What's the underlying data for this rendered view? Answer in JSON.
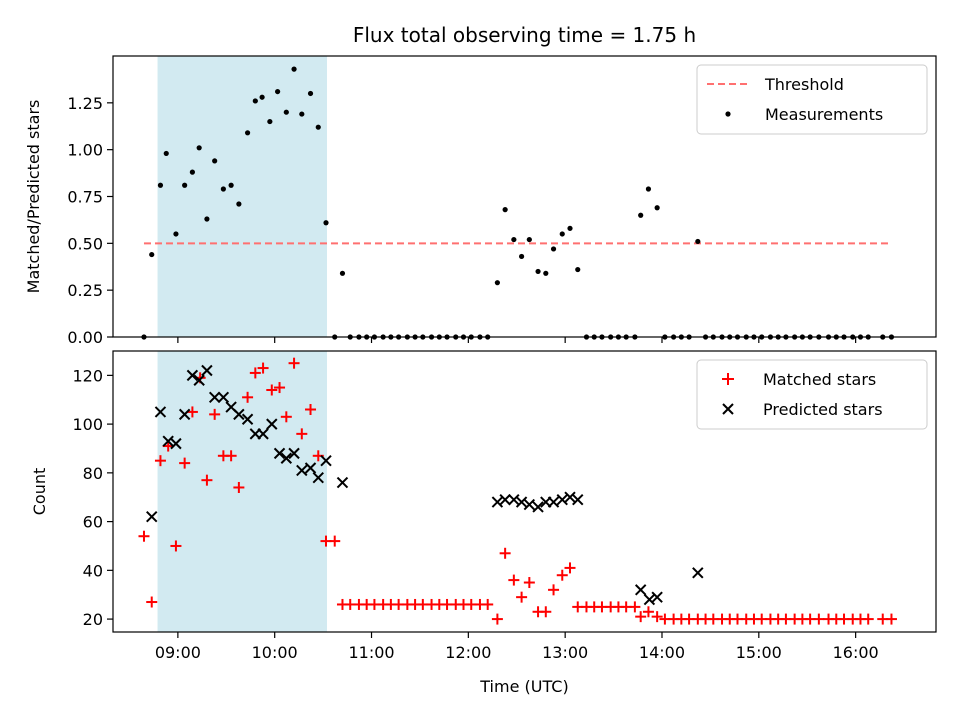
{
  "figure_title": "Flux total observing time = 1.75 h",
  "colors": {
    "highlight_band": "#add8e6",
    "threshold": "#ff7070",
    "measurement": "#000000",
    "matched": "#ff0000",
    "predicted": "#000000"
  },
  "chart_data": [
    {
      "type": "scatter",
      "panel": "top",
      "title": "Flux total observing time = 1.75 h",
      "xlabel": "",
      "ylabel": "Matched/Predicted stars",
      "xlim": [
        8.33,
        16.83
      ],
      "ylim": [
        0.0,
        1.5
      ],
      "yticks": [
        0.0,
        0.25,
        0.5,
        0.75,
        1.0,
        1.25
      ],
      "ytick_labels": [
        "0.00",
        "0.25",
        "0.50",
        "0.75",
        "1.00",
        "1.25"
      ],
      "xticks": [
        9,
        10,
        11,
        12,
        13,
        14,
        15,
        16
      ],
      "highlight_span": [
        8.79,
        10.54
      ],
      "legend": {
        "location": "upper right",
        "entries": [
          "Threshold",
          "Measurements"
        ]
      },
      "threshold": {
        "name": "Threshold",
        "y": 0.5,
        "x_range": [
          8.65,
          16.35
        ],
        "style": "dashed"
      },
      "series": [
        {
          "name": "Measurements",
          "marker": "dot",
          "points": [
            [
              8.65,
              0.0
            ],
            [
              8.73,
              0.44
            ],
            [
              8.82,
              0.81
            ],
            [
              8.88,
              0.98
            ],
            [
              8.98,
              0.55
            ],
            [
              9.07,
              0.81
            ],
            [
              9.15,
              0.88
            ],
            [
              9.22,
              1.01
            ],
            [
              9.3,
              0.63
            ],
            [
              9.38,
              0.94
            ],
            [
              9.47,
              0.79
            ],
            [
              9.55,
              0.81
            ],
            [
              9.63,
              0.71
            ],
            [
              9.72,
              1.09
            ],
            [
              9.8,
              1.26
            ],
            [
              9.87,
              1.28
            ],
            [
              9.95,
              1.15
            ],
            [
              10.03,
              1.31
            ],
            [
              10.12,
              1.2
            ],
            [
              10.2,
              1.43
            ],
            [
              10.28,
              1.19
            ],
            [
              10.37,
              1.3
            ],
            [
              10.45,
              1.12
            ],
            [
              10.53,
              0.61
            ],
            [
              10.7,
              0.34
            ],
            [
              10.62,
              0.0
            ],
            [
              10.78,
              0.0
            ],
            [
              10.87,
              0.0
            ],
            [
              10.95,
              0.0
            ],
            [
              11.03,
              0.0
            ],
            [
              11.12,
              0.0
            ],
            [
              11.2,
              0.0
            ],
            [
              11.28,
              0.0
            ],
            [
              11.37,
              0.0
            ],
            [
              11.45,
              0.0
            ],
            [
              11.53,
              0.0
            ],
            [
              11.62,
              0.0
            ],
            [
              11.7,
              0.0
            ],
            [
              11.78,
              0.0
            ],
            [
              11.87,
              0.0
            ],
            [
              11.95,
              0.0
            ],
            [
              12.03,
              0.0
            ],
            [
              12.12,
              0.0
            ],
            [
              12.2,
              0.0
            ],
            [
              12.3,
              0.29
            ],
            [
              12.38,
              0.68
            ],
            [
              12.47,
              0.52
            ],
            [
              12.55,
              0.43
            ],
            [
              12.63,
              0.52
            ],
            [
              12.72,
              0.35
            ],
            [
              12.8,
              0.34
            ],
            [
              12.88,
              0.47
            ],
            [
              12.97,
              0.55
            ],
            [
              13.05,
              0.58
            ],
            [
              13.13,
              0.36
            ],
            [
              13.22,
              0.0
            ],
            [
              13.3,
              0.0
            ],
            [
              13.38,
              0.0
            ],
            [
              13.47,
              0.0
            ],
            [
              13.55,
              0.0
            ],
            [
              13.63,
              0.0
            ],
            [
              13.72,
              0.0
            ],
            [
              13.78,
              0.65
            ],
            [
              13.86,
              0.79
            ],
            [
              13.95,
              0.69
            ],
            [
              14.03,
              0.0
            ],
            [
              14.12,
              0.0
            ],
            [
              14.2,
              0.0
            ],
            [
              14.28,
              0.0
            ],
            [
              14.37,
              0.51
            ],
            [
              14.45,
              0.0
            ],
            [
              14.53,
              0.0
            ],
            [
              14.62,
              0.0
            ],
            [
              14.7,
              0.0
            ],
            [
              14.78,
              0.0
            ],
            [
              14.87,
              0.0
            ],
            [
              14.95,
              0.0
            ],
            [
              15.03,
              0.0
            ],
            [
              15.12,
              0.0
            ],
            [
              15.2,
              0.0
            ],
            [
              15.28,
              0.0
            ],
            [
              15.37,
              0.0
            ],
            [
              15.45,
              0.0
            ],
            [
              15.53,
              0.0
            ],
            [
              15.62,
              0.0
            ],
            [
              15.72,
              0.0
            ],
            [
              15.8,
              0.0
            ],
            [
              15.88,
              0.0
            ],
            [
              15.97,
              0.0
            ],
            [
              16.05,
              0.0
            ],
            [
              16.13,
              0.0
            ],
            [
              16.28,
              0.0
            ],
            [
              16.37,
              0.0
            ]
          ]
        }
      ]
    },
    {
      "type": "scatter",
      "panel": "bottom",
      "title": "",
      "xlabel": "Time (UTC)",
      "ylabel": "Count",
      "xlim": [
        8.33,
        16.83
      ],
      "ylim": [
        14.7,
        130.0
      ],
      "yticks": [
        20,
        40,
        60,
        80,
        100,
        120
      ],
      "ytick_labels": [
        "20",
        "40",
        "60",
        "80",
        "100",
        "120"
      ],
      "xticks": [
        9,
        10,
        11,
        12,
        13,
        14,
        15,
        16
      ],
      "xtick_labels": [
        "09:00",
        "10:00",
        "11:00",
        "12:00",
        "13:00",
        "14:00",
        "15:00",
        "16:00"
      ],
      "highlight_span": [
        8.79,
        10.54
      ],
      "legend": {
        "location": "upper right",
        "entries": [
          "Matched stars",
          "Predicted stars"
        ]
      },
      "series": [
        {
          "name": "Matched stars",
          "marker": "plus",
          "points": [
            [
              8.65,
              54
            ],
            [
              8.73,
              27
            ],
            [
              8.82,
              85
            ],
            [
              8.9,
              91
            ],
            [
              8.98,
              50
            ],
            [
              9.07,
              84
            ],
            [
              9.15,
              105
            ],
            [
              9.23,
              119
            ],
            [
              9.3,
              77
            ],
            [
              9.38,
              104
            ],
            [
              9.47,
              87
            ],
            [
              9.55,
              87
            ],
            [
              9.63,
              74
            ],
            [
              9.72,
              111
            ],
            [
              9.8,
              121
            ],
            [
              9.88,
              123
            ],
            [
              9.97,
              114
            ],
            [
              10.05,
              115
            ],
            [
              10.12,
              103
            ],
            [
              10.2,
              125
            ],
            [
              10.28,
              96
            ],
            [
              10.37,
              106
            ],
            [
              10.45,
              87
            ],
            [
              10.53,
              52
            ],
            [
              10.62,
              52
            ],
            [
              10.7,
              26
            ],
            [
              10.78,
              26
            ],
            [
              10.87,
              26
            ],
            [
              10.95,
              26
            ],
            [
              11.03,
              26
            ],
            [
              11.12,
              26
            ],
            [
              11.2,
              26
            ],
            [
              11.28,
              26
            ],
            [
              11.37,
              26
            ],
            [
              11.45,
              26
            ],
            [
              11.53,
              26
            ],
            [
              11.62,
              26
            ],
            [
              11.7,
              26
            ],
            [
              11.78,
              26
            ],
            [
              11.87,
              26
            ],
            [
              11.95,
              26
            ],
            [
              12.03,
              26
            ],
            [
              12.12,
              26
            ],
            [
              12.2,
              26
            ],
            [
              12.3,
              20
            ],
            [
              12.38,
              47
            ],
            [
              12.47,
              36
            ],
            [
              12.55,
              29
            ],
            [
              12.63,
              35
            ],
            [
              12.72,
              23
            ],
            [
              12.8,
              23
            ],
            [
              12.88,
              32
            ],
            [
              12.97,
              38
            ],
            [
              13.05,
              41
            ],
            [
              13.13,
              25
            ],
            [
              13.22,
              25
            ],
            [
              13.3,
              25
            ],
            [
              13.38,
              25
            ],
            [
              13.47,
              25
            ],
            [
              13.55,
              25
            ],
            [
              13.63,
              25
            ],
            [
              13.72,
              25
            ],
            [
              13.78,
              21
            ],
            [
              13.86,
              23
            ],
            [
              13.95,
              21
            ],
            [
              14.03,
              20
            ],
            [
              14.12,
              20
            ],
            [
              14.2,
              20
            ],
            [
              14.28,
              20
            ],
            [
              14.37,
              20
            ],
            [
              14.45,
              20
            ],
            [
              14.53,
              20
            ],
            [
              14.62,
              20
            ],
            [
              14.7,
              20
            ],
            [
              14.78,
              20
            ],
            [
              14.87,
              20
            ],
            [
              14.95,
              20
            ],
            [
              15.03,
              20
            ],
            [
              15.12,
              20
            ],
            [
              15.2,
              20
            ],
            [
              15.28,
              20
            ],
            [
              15.37,
              20
            ],
            [
              15.45,
              20
            ],
            [
              15.53,
              20
            ],
            [
              15.62,
              20
            ],
            [
              15.72,
              20
            ],
            [
              15.8,
              20
            ],
            [
              15.88,
              20
            ],
            [
              15.97,
              20
            ],
            [
              16.05,
              20
            ],
            [
              16.13,
              20
            ],
            [
              16.28,
              20
            ],
            [
              16.37,
              20
            ]
          ]
        },
        {
          "name": "Predicted stars",
          "marker": "x",
          "points": [
            [
              8.73,
              62
            ],
            [
              8.82,
              105
            ],
            [
              8.9,
              93
            ],
            [
              8.98,
              92
            ],
            [
              9.07,
              104
            ],
            [
              9.15,
              120
            ],
            [
              9.22,
              118
            ],
            [
              9.3,
              122
            ],
            [
              9.38,
              111
            ],
            [
              9.47,
              111
            ],
            [
              9.55,
              107
            ],
            [
              9.63,
              104
            ],
            [
              9.72,
              102
            ],
            [
              9.8,
              96
            ],
            [
              9.88,
              96
            ],
            [
              9.97,
              100
            ],
            [
              10.05,
              88
            ],
            [
              10.12,
              86
            ],
            [
              10.2,
              88
            ],
            [
              10.28,
              81
            ],
            [
              10.37,
              82
            ],
            [
              10.45,
              78
            ],
            [
              10.53,
              85
            ],
            [
              10.7,
              76
            ],
            [
              12.3,
              68
            ],
            [
              12.38,
              69
            ],
            [
              12.47,
              69
            ],
            [
              12.55,
              68
            ],
            [
              12.63,
              67
            ],
            [
              12.72,
              66
            ],
            [
              12.8,
              68
            ],
            [
              12.88,
              68
            ],
            [
              12.97,
              69
            ],
            [
              13.05,
              70
            ],
            [
              13.13,
              69
            ],
            [
              13.78,
              32
            ],
            [
              13.87,
              28
            ],
            [
              13.95,
              29
            ],
            [
              14.37,
              39
            ]
          ]
        }
      ]
    }
  ]
}
